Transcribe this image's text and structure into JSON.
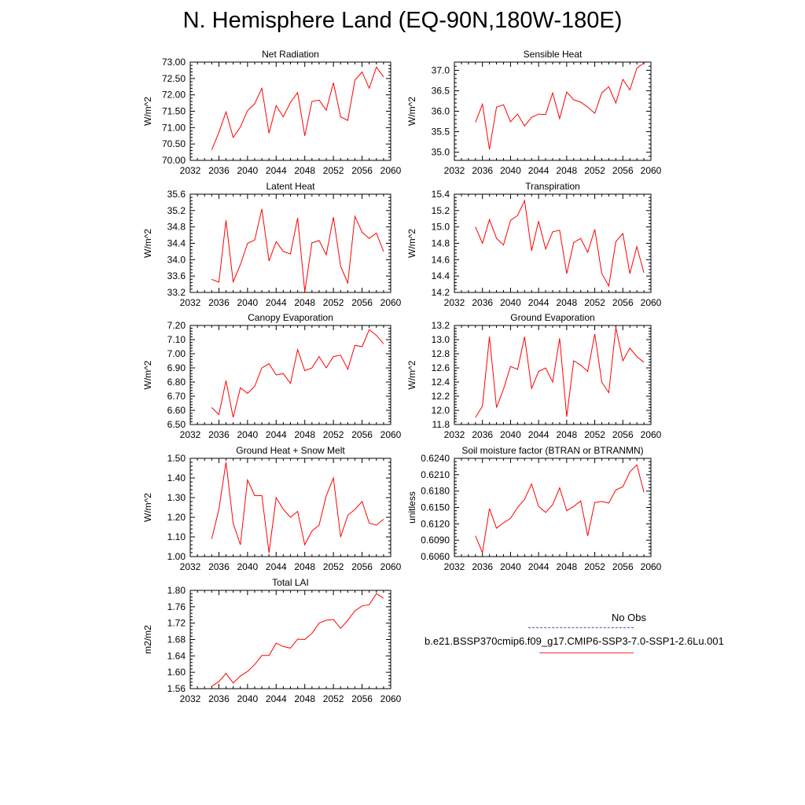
{
  "figure": {
    "title": "N. Hemisphere Land (EQ-90N,180W-180E)"
  },
  "colors": {
    "series": "#ff0000",
    "obs": "#5050c8",
    "axis": "#000000"
  },
  "legend": {
    "obs_label": "No Obs",
    "run_label": "b.e21.BSSP370cmip6.f09_g17.CMIP6-SSP3-7.0-SSP1-2.6Lu.001"
  },
  "chart_data": [
    {
      "type": "line",
      "title": "Net Radiation",
      "ylabel": "W/m^2",
      "xlim": [
        2032,
        2060
      ],
      "ylim": [
        70.0,
        73.0
      ],
      "xticks": [
        "2032",
        "2036",
        "2040",
        "2044",
        "2048",
        "2052",
        "2056",
        "2060"
      ],
      "yticks": [
        "70.00",
        "70.50",
        "71.00",
        "71.50",
        "72.00",
        "72.50",
        "73.00"
      ],
      "x": [
        2035,
        2036,
        2037,
        2038,
        2039,
        2040,
        2041,
        2042,
        2043,
        2044,
        2045,
        2046,
        2047,
        2048,
        2049,
        2050,
        2051,
        2052,
        2053,
        2054,
        2055,
        2056,
        2057,
        2058,
        2059
      ],
      "values": [
        70.32,
        70.85,
        71.48,
        70.7,
        71.02,
        71.52,
        71.73,
        72.2,
        70.83,
        71.67,
        71.33,
        71.77,
        72.07,
        70.75,
        71.8,
        71.84,
        71.53,
        72.37,
        71.33,
        71.22,
        72.45,
        72.7,
        72.2,
        72.85,
        72.55
      ]
    },
    {
      "type": "line",
      "title": "Sensible Heat",
      "ylabel": "W/m^2",
      "xlim": [
        2032,
        2060
      ],
      "ylim": [
        34.8,
        37.2
      ],
      "xticks": [
        "2032",
        "2036",
        "2040",
        "2044",
        "2048",
        "2052",
        "2056",
        "2060"
      ],
      "yticks": [
        "35.0",
        "35.5",
        "36.0",
        "36.5",
        "37.0"
      ],
      "x": [
        2035,
        2036,
        2037,
        2038,
        2039,
        2040,
        2041,
        2042,
        2043,
        2044,
        2045,
        2046,
        2047,
        2048,
        2049,
        2050,
        2051,
        2052,
        2053,
        2054,
        2055,
        2056,
        2057,
        2058,
        2059
      ],
      "values": [
        35.73,
        36.17,
        35.07,
        36.1,
        36.16,
        35.74,
        35.93,
        35.64,
        35.85,
        35.93,
        35.92,
        36.45,
        35.82,
        36.47,
        36.28,
        36.22,
        36.1,
        35.95,
        36.45,
        36.6,
        36.2,
        36.78,
        36.52,
        37.05,
        37.18
      ]
    },
    {
      "type": "line",
      "title": "Latent Heat",
      "ylabel": "W/m^2",
      "xlim": [
        2032,
        2060
      ],
      "ylim": [
        33.2,
        35.6
      ],
      "xticks": [
        "2032",
        "2036",
        "2040",
        "2044",
        "2048",
        "2052",
        "2056",
        "2060"
      ],
      "yticks": [
        "33.2",
        "33.6",
        "34.0",
        "34.4",
        "34.8",
        "35.2",
        "35.6"
      ],
      "x": [
        2035,
        2036,
        2037,
        2038,
        2039,
        2040,
        2041,
        2042,
        2043,
        2044,
        2045,
        2046,
        2047,
        2048,
        2049,
        2050,
        2051,
        2052,
        2053,
        2054,
        2055,
        2056,
        2057,
        2058,
        2059
      ],
      "values": [
        33.52,
        33.45,
        34.96,
        33.46,
        33.88,
        34.4,
        34.48,
        35.24,
        33.97,
        34.44,
        34.2,
        34.14,
        35.02,
        33.22,
        34.41,
        34.47,
        34.12,
        35.04,
        33.84,
        33.43,
        35.06,
        34.67,
        34.52,
        34.65,
        34.2
      ]
    },
    {
      "type": "line",
      "title": "Transpiration",
      "ylabel": "W/m^2",
      "xlim": [
        2032,
        2060
      ],
      "ylim": [
        14.2,
        15.4
      ],
      "xticks": [
        "2032",
        "2036",
        "2040",
        "2044",
        "2048",
        "2052",
        "2056",
        "2060"
      ],
      "yticks": [
        "14.2",
        "14.4",
        "14.6",
        "14.8",
        "15.0",
        "15.2",
        "15.4"
      ],
      "x": [
        2035,
        2036,
        2037,
        2038,
        2039,
        2040,
        2041,
        2042,
        2043,
        2044,
        2045,
        2046,
        2047,
        2048,
        2049,
        2050,
        2051,
        2052,
        2053,
        2054,
        2055,
        2056,
        2057,
        2058,
        2059
      ],
      "values": [
        15.0,
        14.8,
        15.09,
        14.86,
        14.78,
        15.08,
        15.14,
        15.32,
        14.71,
        15.07,
        14.73,
        14.94,
        14.96,
        14.43,
        14.81,
        14.86,
        14.69,
        14.97,
        14.43,
        14.28,
        14.82,
        14.92,
        14.43,
        14.76,
        14.44
      ]
    },
    {
      "type": "line",
      "title": "Canopy Evaporation",
      "ylabel": "W/m^2",
      "xlim": [
        2032,
        2060
      ],
      "ylim": [
        6.5,
        7.2
      ],
      "xticks": [
        "2032",
        "2036",
        "2040",
        "2044",
        "2048",
        "2052",
        "2056",
        "2060"
      ],
      "yticks": [
        "6.50",
        "6.60",
        "6.70",
        "6.80",
        "6.90",
        "7.00",
        "7.10",
        "7.20"
      ],
      "x": [
        2035,
        2036,
        2037,
        2038,
        2039,
        2040,
        2041,
        2042,
        2043,
        2044,
        2045,
        2046,
        2047,
        2048,
        2049,
        2050,
        2051,
        2052,
        2053,
        2054,
        2055,
        2056,
        2057,
        2058,
        2059
      ],
      "values": [
        6.62,
        6.57,
        6.81,
        6.55,
        6.76,
        6.72,
        6.77,
        6.9,
        6.93,
        6.85,
        6.86,
        6.79,
        7.03,
        6.88,
        6.9,
        6.98,
        6.9,
        6.98,
        6.99,
        6.89,
        7.06,
        7.05,
        7.17,
        7.13,
        7.07
      ]
    },
    {
      "type": "line",
      "title": "Ground Evaporation",
      "ylabel": "W/m^2",
      "xlim": [
        2032,
        2060
      ],
      "ylim": [
        11.8,
        13.2
      ],
      "xticks": [
        "2032",
        "2036",
        "2040",
        "2044",
        "2048",
        "2052",
        "2056",
        "2060"
      ],
      "yticks": [
        "11.8",
        "12.0",
        "12.2",
        "12.4",
        "12.6",
        "12.8",
        "13.0",
        "13.2"
      ],
      "x": [
        2035,
        2036,
        2037,
        2038,
        2039,
        2040,
        2041,
        2042,
        2043,
        2044,
        2045,
        2046,
        2047,
        2048,
        2049,
        2050,
        2051,
        2052,
        2053,
        2054,
        2055,
        2056,
        2057,
        2058,
        2059
      ],
      "values": [
        11.9,
        12.06,
        13.04,
        12.04,
        12.3,
        12.62,
        12.58,
        13.04,
        12.31,
        12.55,
        12.6,
        12.4,
        13.02,
        11.91,
        12.7,
        12.64,
        12.55,
        13.08,
        12.4,
        12.25,
        13.17,
        12.7,
        12.88,
        12.76,
        12.68
      ]
    },
    {
      "type": "line",
      "title": "Ground Heat + Snow Melt",
      "ylabel": "W/m^2",
      "xlim": [
        2032,
        2060
      ],
      "ylim": [
        1.0,
        1.5
      ],
      "xticks": [
        "2032",
        "2036",
        "2040",
        "2044",
        "2048",
        "2052",
        "2056",
        "2060"
      ],
      "yticks": [
        "1.00",
        "1.10",
        "1.20",
        "1.30",
        "1.40",
        "1.50"
      ],
      "x": [
        2035,
        2036,
        2037,
        2038,
        2039,
        2040,
        2041,
        2042,
        2043,
        2044,
        2045,
        2046,
        2047,
        2048,
        2049,
        2050,
        2051,
        2052,
        2053,
        2054,
        2055,
        2056,
        2057,
        2058,
        2059
      ],
      "values": [
        1.09,
        1.24,
        1.48,
        1.17,
        1.06,
        1.39,
        1.31,
        1.31,
        1.02,
        1.3,
        1.24,
        1.2,
        1.23,
        1.06,
        1.13,
        1.16,
        1.31,
        1.4,
        1.1,
        1.21,
        1.24,
        1.28,
        1.17,
        1.16,
        1.19
      ]
    },
    {
      "type": "line",
      "title": "Soil moisture factor (BTRAN or BTRANMN)",
      "ylabel": "unitless",
      "xlim": [
        2032,
        2060
      ],
      "ylim": [
        0.606,
        0.624
      ],
      "xticks": [
        "2032",
        "2036",
        "2040",
        "2044",
        "2048",
        "2052",
        "2056",
        "2060"
      ],
      "yticks": [
        "0.6060",
        "0.6090",
        "0.6120",
        "0.6150",
        "0.6180",
        "0.6210",
        "0.6240"
      ],
      "x": [
        2035,
        2036,
        2037,
        2038,
        2039,
        2040,
        2041,
        2042,
        2043,
        2044,
        2045,
        2046,
        2047,
        2048,
        2049,
        2050,
        2051,
        2052,
        2053,
        2054,
        2055,
        2056,
        2057,
        2058,
        2059
      ],
      "values": [
        0.6098,
        0.6067,
        0.6148,
        0.6112,
        0.6122,
        0.613,
        0.615,
        0.6165,
        0.6193,
        0.6152,
        0.6141,
        0.6155,
        0.6186,
        0.6144,
        0.6152,
        0.6162,
        0.6098,
        0.6159,
        0.6161,
        0.6158,
        0.6182,
        0.6188,
        0.6215,
        0.6228,
        0.6178
      ]
    },
    {
      "type": "line",
      "title": "Total LAI",
      "ylabel": "m2/m2",
      "xlim": [
        2032,
        2060
      ],
      "ylim": [
        1.56,
        1.8
      ],
      "xticks": [
        "2032",
        "2036",
        "2040",
        "2044",
        "2048",
        "2052",
        "2056",
        "2060"
      ],
      "yticks": [
        "1.56",
        "1.60",
        "1.64",
        "1.68",
        "1.72",
        "1.76",
        "1.80"
      ],
      "x": [
        2035,
        2036,
        2037,
        2038,
        2039,
        2040,
        2041,
        2042,
        2043,
        2044,
        2045,
        2046,
        2047,
        2048,
        2049,
        2050,
        2051,
        2052,
        2053,
        2054,
        2055,
        2056,
        2057,
        2058,
        2059
      ],
      "values": [
        1.566,
        1.577,
        1.597,
        1.574,
        1.591,
        1.602,
        1.619,
        1.641,
        1.641,
        1.671,
        1.663,
        1.659,
        1.681,
        1.68,
        1.695,
        1.72,
        1.727,
        1.729,
        1.707,
        1.727,
        1.75,
        1.762,
        1.765,
        1.792,
        1.781
      ]
    }
  ]
}
